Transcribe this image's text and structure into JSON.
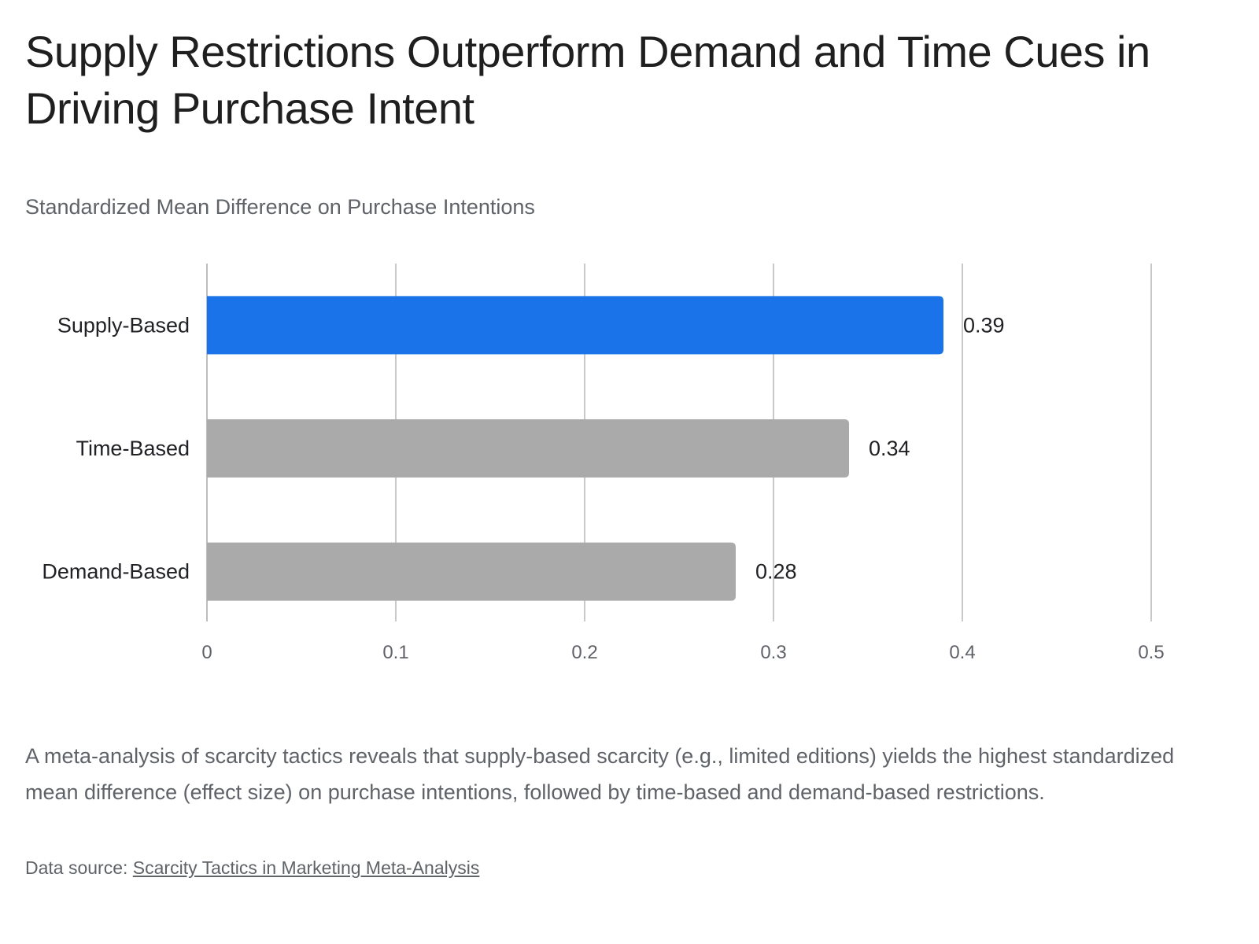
{
  "chart_data": {
    "type": "bar",
    "orientation": "horizontal",
    "title": "Supply Restrictions Outperform Demand and Time Cues in Driving Purchase Intent",
    "subtitle": "Standardized Mean Difference on Purchase Intentions",
    "categories": [
      "Supply-Based",
      "Time-Based",
      "Demand-Based"
    ],
    "values": [
      0.39,
      0.34,
      0.28
    ],
    "data_labels": [
      "0.39",
      "0.34",
      "0.28"
    ],
    "bar_colors": [
      "#1a73e8",
      "#aaaaaa",
      "#aaaaaa"
    ],
    "xlim": [
      0,
      0.5
    ],
    "x_ticks": [
      0,
      0.1,
      0.2,
      0.3,
      0.4,
      0.5
    ],
    "x_tick_labels": [
      "0",
      "0.1",
      "0.2",
      "0.3",
      "0.4",
      "0.5"
    ],
    "grid": true,
    "legend": "none"
  },
  "description": "A meta-analysis of scarcity tactics reveals that supply-based scarcity (e.g., limited editions) yields the highest standardized mean difference (effect size) on purchase intentions, followed by time-based and demand-based restrictions.",
  "source": {
    "prefix": "Data source: ",
    "link_text": "Scarcity Tactics in Marketing Meta-Analysis"
  }
}
